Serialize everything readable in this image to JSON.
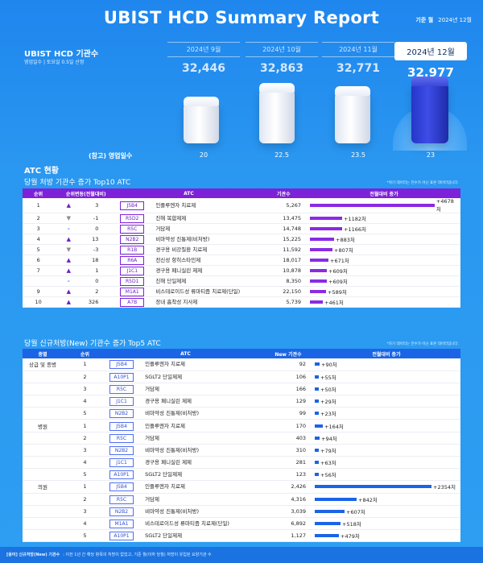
{
  "header": {
    "title": "UBIST HCD Summary Report",
    "basis_label": "기준 월",
    "basis_value": "2024년 12월"
  },
  "kpi": {
    "title": "UBIST HCD 기관수",
    "subtitle": "영업일수 | 토요일 0.5일 산정",
    "months": [
      {
        "label": "2024년 9월",
        "value": "32,446",
        "workdays": "20",
        "height_ratio": 0.44
      },
      {
        "label": "2024년 10월",
        "value": "32,863",
        "workdays": "22.5",
        "height_ratio": 0.82
      },
      {
        "label": "2024년 11월",
        "value": "32,771",
        "workdays": "23.5",
        "height_ratio": 0.74
      },
      {
        "label": "2024년 12월",
        "value": "32,977",
        "workdays": "23",
        "height_ratio": 1.0
      }
    ],
    "workdays_label": "(참고) 영업일수"
  },
  "atc_title": "ATC 현황",
  "top10": {
    "title": "당월 처방 기관수 증가 Top10 ATC",
    "note": "*위기 데이터는 전수가 아닌 표본 데이터입니다.",
    "headers": [
      "순위",
      "순위변동(전월대비)",
      "ATC",
      "기관수",
      "전월대비 증가"
    ],
    "rows": [
      {
        "rank": "1",
        "dir": "up",
        "change": "3",
        "code": "J5B4",
        "name": "인플루엔자 치료제",
        "count": "5,267",
        "inc": "+4678처",
        "incv": 4678
      },
      {
        "rank": "2",
        "dir": "down",
        "change": "-1",
        "code": "R5D2",
        "name": "진해 복합제제",
        "count": "13,475",
        "inc": "+1182처",
        "incv": 1182
      },
      {
        "rank": "3",
        "dir": "flat",
        "change": "0",
        "code": "R5C",
        "name": "거담제",
        "count": "14,748",
        "inc": "+1166처",
        "incv": 1166
      },
      {
        "rank": "4",
        "dir": "up",
        "change": "13",
        "code": "N2B2",
        "name": "비마약성 진통제(비처방)",
        "count": "15,225",
        "inc": "+883처",
        "incv": 883
      },
      {
        "rank": "5",
        "dir": "down",
        "change": "-3",
        "code": "R1B",
        "name": "경구용 비강질환 치료제",
        "count": "11,592",
        "inc": "+807처",
        "incv": 807
      },
      {
        "rank": "6",
        "dir": "up",
        "change": "18",
        "code": "R6A",
        "name": "전신성 항히스타민제",
        "count": "18,017",
        "inc": "+671처",
        "incv": 671
      },
      {
        "rank": "7",
        "dir": "up",
        "change": "1",
        "code": "J1C1",
        "name": "경구용 페니실린 제제",
        "count": "10,878",
        "inc": "+609처",
        "incv": 609
      },
      {
        "rank": "",
        "dir": "flat",
        "change": "0",
        "code": "R5D1",
        "name": "진해 단일제제",
        "count": "8,350",
        "inc": "+609처",
        "incv": 609
      },
      {
        "rank": "9",
        "dir": "up",
        "change": "2",
        "code": "M1A1",
        "name": "비스테로이드성 류마티즘 치료제(단일)",
        "count": "22,150",
        "inc": "+589처",
        "incv": 589
      },
      {
        "rank": "10",
        "dir": "up",
        "change": "326",
        "code": "A7B",
        "name": "장내 흡착성 지사제",
        "count": "5,739",
        "inc": "+461처",
        "incv": 461
      }
    ]
  },
  "top5": {
    "title": "당월 신규처방(New) 기관수 증가 Top5 ATC",
    "note": "*하기 데이터는 전수가 아닌 표본 데이터입니다.",
    "headers": [
      "종별",
      "순위",
      "ATC",
      "New 기관수",
      "전월대비 증가"
    ],
    "groups": [
      {
        "name": "상급 및 종병",
        "rows": [
          {
            "rank": "1",
            "code": "J5B4",
            "name": "인플루엔자 치료제",
            "count": "92",
            "inc": "+90처",
            "incv": 90
          },
          {
            "rank": "2",
            "code": "A10P1",
            "name": "SGLT2 단일제제",
            "count": "106",
            "inc": "+55처",
            "incv": 55
          },
          {
            "rank": "3",
            "code": "R5C",
            "name": "거담제",
            "count": "166",
            "inc": "+50처",
            "incv": 50
          },
          {
            "rank": "4",
            "code": "J1C1",
            "name": "경구용 페니실린 제제",
            "count": "129",
            "inc": "+29처",
            "incv": 29
          },
          {
            "rank": "5",
            "code": "N2B2",
            "name": "비마약성 진통제(비처방)",
            "count": "99",
            "inc": "+23처",
            "incv": 23
          }
        ]
      },
      {
        "name": "병원",
        "rows": [
          {
            "rank": "1",
            "code": "J5B4",
            "name": "인플루엔자 치료제",
            "count": "170",
            "inc": "+164처",
            "incv": 164
          },
          {
            "rank": "2",
            "code": "R5C",
            "name": "거담제",
            "count": "403",
            "inc": "+94처",
            "incv": 94
          },
          {
            "rank": "3",
            "code": "N2B2",
            "name": "비마약성 진통제(비처방)",
            "count": "310",
            "inc": "+79처",
            "incv": 79
          },
          {
            "rank": "4",
            "code": "J1C1",
            "name": "경구용 페니실린 제제",
            "count": "281",
            "inc": "+63처",
            "incv": 63
          },
          {
            "rank": "5",
            "code": "A10P1",
            "name": "SGLT2 단일제제",
            "count": "123",
            "inc": "+56처",
            "incv": 56
          }
        ]
      },
      {
        "name": "의원",
        "rows": [
          {
            "rank": "1",
            "code": "J5B4",
            "name": "인플루엔자 치료제",
            "count": "2,426",
            "inc": "+2354처",
            "incv": 2354
          },
          {
            "rank": "2",
            "code": "R5C",
            "name": "거담제",
            "count": "4,316",
            "inc": "+842처",
            "incv": 842
          },
          {
            "rank": "3",
            "code": "N2B2",
            "name": "비마약성 진통제(비처방)",
            "count": "3,039",
            "inc": "+607처",
            "incv": 607
          },
          {
            "rank": "4",
            "code": "M1A1",
            "name": "비스테로이드성 류마티즘 치료제(단일)",
            "count": "6,892",
            "inc": "+518처",
            "incv": 518
          },
          {
            "rank": "5",
            "code": "A10P1",
            "name": "SGLT2 단일제제",
            "count": "1,127",
            "inc": "+479처",
            "incv": 479
          }
        ]
      }
    ]
  },
  "footer": {
    "term": "[용어] 신규처방(New) 기관수",
    "text": ": 이전 1년 간 해당 항목의 처방이 없었고, 기준 월(이하 당월) 처방이 유입된 요양기관 수"
  },
  "colors": {
    "top10_accent": "#7d22d8",
    "top5_accent": "#1b64e6",
    "current_cube": "#3d4de6"
  }
}
